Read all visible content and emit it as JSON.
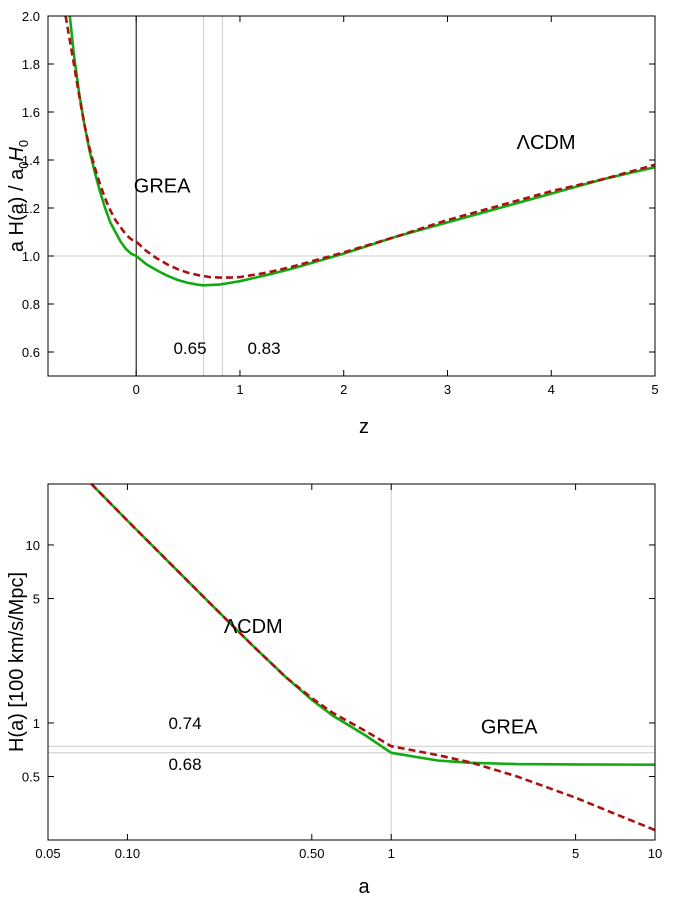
{
  "colors": {
    "lcdm": "#11aa11",
    "grea": "#aa1111",
    "refline": "#cccccc",
    "axis": "#000000"
  },
  "chart_data": [
    {
      "type": "line",
      "xlabel": "z",
      "ylabel_main": "a H(a)  / a",
      "ylabel_sub1": "0",
      "ylabel_mid": "H",
      "ylabel_sub2": "0",
      "xlim": [
        -0.85,
        5
      ],
      "ylim": [
        0.5,
        2.0
      ],
      "xticks": [
        0,
        1,
        2,
        3,
        4,
        5
      ],
      "xtick_labels": [
        "0",
        "1",
        "2",
        "3",
        "4",
        "5"
      ],
      "yticks": [
        0.6,
        0.8,
        1.0,
        1.2,
        1.4,
        1.6,
        1.8,
        2.0
      ],
      "ytick_labels": [
        "0.6",
        "0.8",
        "1.0",
        "1.2",
        "1.4",
        "1.6",
        "1.8",
        "2.0"
      ],
      "vlines": [
        0.65,
        0.83
      ],
      "hline": 1.0,
      "annotations": [
        "0.65",
        "0.83"
      ],
      "series": [
        {
          "name": "ΛCDM",
          "key": "lcdm",
          "style": "solid",
          "x": [
            -0.64,
            -0.6,
            -0.55,
            -0.5,
            -0.45,
            -0.4,
            -0.35,
            -0.3,
            -0.25,
            -0.2,
            -0.15,
            -0.1,
            -0.05,
            0,
            0.1,
            0.2,
            0.3,
            0.4,
            0.5,
            0.6,
            0.65,
            0.8,
            1.0,
            1.25,
            1.5,
            2.0,
            2.5,
            3.0,
            3.5,
            4.0,
            4.5,
            5.0
          ],
          "y": [
            2.0,
            1.84,
            1.68,
            1.55,
            1.44,
            1.35,
            1.27,
            1.2,
            1.14,
            1.1,
            1.06,
            1.03,
            1.01,
            1.0,
            0.965,
            0.94,
            0.918,
            0.9,
            0.888,
            0.88,
            0.878,
            0.881,
            0.895,
            0.92,
            0.947,
            1.01,
            1.08,
            1.14,
            1.2,
            1.26,
            1.32,
            1.37
          ]
        },
        {
          "name": "GREA",
          "key": "grea",
          "style": "dashed",
          "x": [
            -0.68,
            -0.6,
            -0.55,
            -0.5,
            -0.45,
            -0.4,
            -0.35,
            -0.3,
            -0.25,
            -0.2,
            -0.15,
            -0.1,
            -0.05,
            0,
            0.1,
            0.2,
            0.3,
            0.4,
            0.5,
            0.6,
            0.7,
            0.8,
            0.9,
            1.0,
            1.25,
            1.5,
            2.0,
            2.5,
            3.0,
            3.5,
            4.0,
            4.5,
            5.0
          ],
          "y": [
            2.0,
            1.8,
            1.67,
            1.55,
            1.45,
            1.37,
            1.3,
            1.24,
            1.19,
            1.15,
            1.12,
            1.09,
            1.07,
            1.06,
            1.02,
            0.99,
            0.965,
            0.945,
            0.93,
            0.92,
            0.913,
            0.91,
            0.91,
            0.912,
            0.93,
            0.955,
            1.015,
            1.08,
            1.15,
            1.21,
            1.27,
            1.32,
            1.38
          ]
        }
      ],
      "series_label_pos": {
        "lcdm": [
          3.95,
          1.445
        ],
        "grea": [
          0.25,
          1.265
        ]
      }
    },
    {
      "type": "line",
      "log_x": true,
      "log_y": true,
      "xlabel": "a",
      "ylabel": "H(a)  [100 km/s/Mpc]",
      "xlim": [
        0.05,
        10
      ],
      "ylim": [
        0.22,
        22
      ],
      "xticks": [
        0.05,
        0.1,
        0.5,
        1,
        5,
        10
      ],
      "xtick_labels": [
        "0.05",
        "0.10",
        "0.50",
        "1",
        "5",
        "10"
      ],
      "yticks": [
        0.5,
        1,
        5,
        10
      ],
      "ytick_labels": [
        "0.5",
        "1",
        "5",
        "10"
      ],
      "vline": 1,
      "hlines": [
        0.74,
        0.68
      ],
      "annotations": [
        "0.74",
        "0.68"
      ],
      "series": [
        {
          "name": "ΛCDM",
          "key": "lcdm",
          "style": "solid",
          "x": [
            0.073,
            0.1,
            0.15,
            0.2,
            0.3,
            0.4,
            0.5,
            0.6,
            0.8,
            1.0,
            1.5,
            2.0,
            3.0,
            5.0,
            10.0
          ],
          "y": [
            22.0,
            13.7,
            7.5,
            4.9,
            2.7,
            1.8,
            1.35,
            1.1,
            0.85,
            0.68,
            0.615,
            0.597,
            0.587,
            0.585,
            0.583
          ]
        },
        {
          "name": "GREA",
          "key": "grea",
          "style": "dashed",
          "x": [
            0.073,
            0.1,
            0.15,
            0.2,
            0.3,
            0.4,
            0.5,
            0.6,
            0.8,
            1.0,
            1.5,
            2.0,
            3.0,
            5.0,
            7.0,
            10.0
          ],
          "y": [
            22.0,
            13.7,
            7.5,
            4.9,
            2.7,
            1.8,
            1.38,
            1.14,
            0.9,
            0.74,
            0.66,
            0.6,
            0.5,
            0.38,
            0.31,
            0.25
          ]
        }
      ],
      "series_label_pos": {
        "lcdm": [
          0.3,
          3.2
        ],
        "grea": [
          2.8,
          0.87
        ]
      }
    }
  ]
}
